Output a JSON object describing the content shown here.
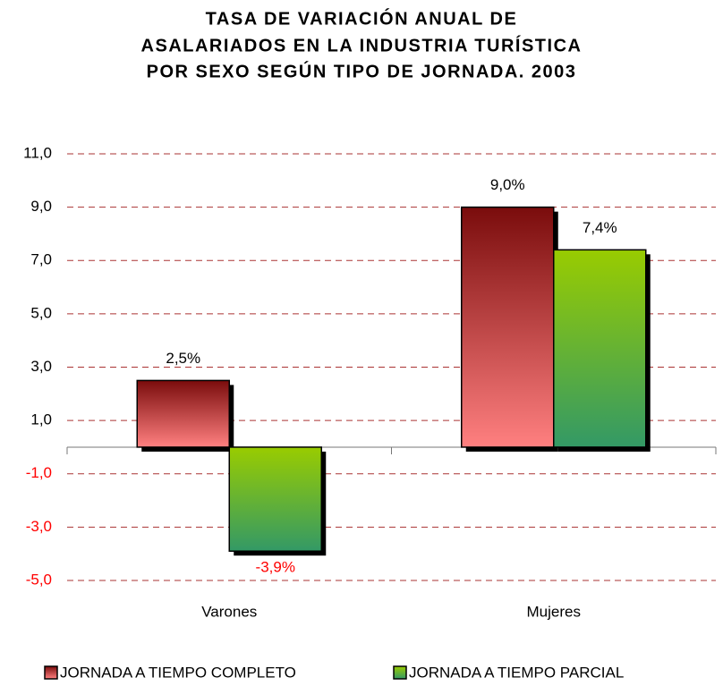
{
  "chart_data": {
    "type": "bar",
    "title_lines": [
      "TASA DE VARIACIÓN ANUAL DE",
      "ASALARIADOS EN LA INDUSTRIA TURÍSTICA",
      "POR SEXO SEGÚN TIPO DE JORNADA. 2003"
    ],
    "categories": [
      "Varones",
      "Mujeres"
    ],
    "series": [
      {
        "name": "JORNADA A TIEMPO COMPLETO",
        "colors": [
          "#7a0c0c",
          "#ff8080"
        ],
        "values": [
          2.5,
          9.0
        ],
        "value_labels": [
          "2,5%",
          "9,0%"
        ]
      },
      {
        "name": "JORNADA A TIEMPO PARCIAL",
        "colors": [
          "#99cc00",
          "#339966"
        ],
        "values": [
          -3.9,
          7.4
        ],
        "value_labels": [
          "-3,9%",
          "7,4%"
        ]
      }
    ],
    "ylim": [
      -5,
      11
    ],
    "yticks": [
      {
        "value": -5,
        "label": "-5,0"
      },
      {
        "value": -3,
        "label": "-3,0"
      },
      {
        "value": -1,
        "label": "-1,0"
      },
      {
        "value": 1,
        "label": "1,0"
      },
      {
        "value": 3,
        "label": "3,0"
      },
      {
        "value": 5,
        "label": "5,0"
      },
      {
        "value": 7,
        "label": "7,0"
      },
      {
        "value": 9,
        "label": "9,0"
      },
      {
        "value": 11,
        "label": "11,0"
      }
    ],
    "grid": true,
    "negative_color": "#ff0000",
    "legend": "bottom"
  }
}
